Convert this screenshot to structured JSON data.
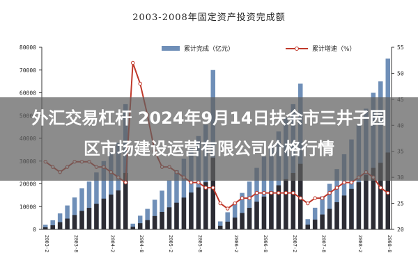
{
  "chart_data": {
    "type": "bar",
    "title": "2003-2008年固定资产投资完成额",
    "legend": {
      "position": "top",
      "entries": [
        "累计完成（亿元）",
        "累计增速（%）"
      ]
    },
    "y_left": {
      "ticks": [
        "80000",
        "70000",
        "60000",
        "50000",
        "40000",
        "30000",
        "20000",
        "10000",
        "0"
      ],
      "ylim": [
        0,
        80000
      ]
    },
    "y_right": {
      "ticks": [
        "55",
        "50",
        "45",
        "40",
        "35",
        "30",
        "25",
        "20"
      ],
      "ylim": [
        20,
        55
      ]
    },
    "x_ticks": [
      "2003-2",
      "2003-8",
      "2004-2",
      "2004-8",
      "2005-2",
      "2005-8",
      "2006-2",
      "2006-8",
      "2007-2",
      "2007-8",
      "2008-2",
      "2008-8"
    ],
    "grid": false,
    "series": [
      {
        "name": "累计完成（亿元）",
        "type": "bar",
        "color": "#6f8fb8",
        "values": [
          2000,
          4000,
          7000,
          10500,
          14000,
          18000,
          21000,
          25000,
          30000,
          34000,
          38000,
          55000,
          2500,
          6000,
          9000,
          13000,
          17000,
          21500,
          26000,
          31000,
          36000,
          41000,
          46000,
          70000,
          3500,
          7500,
          11500,
          16000,
          21000,
          27000,
          32000,
          37000,
          43000,
          49000,
          55000,
          64000,
          4500,
          9500,
          14500,
          20000,
          26500,
          33000,
          39500,
          46000,
          53000,
          60000,
          65000,
          75000
        ]
      },
      {
        "name": "累计增速（%）",
        "type": "line",
        "color": "#c0392b",
        "values": [
          33,
          32,
          31,
          32,
          33,
          33,
          33,
          32,
          32,
          31,
          30,
          29,
          52,
          48,
          42,
          35,
          32,
          32,
          31,
          30,
          29,
          29,
          28,
          28,
          25,
          24,
          25,
          26,
          26,
          27,
          27,
          27,
          27,
          27,
          27,
          26,
          25,
          26,
          26,
          27,
          28,
          29,
          29,
          30,
          31,
          30,
          28,
          27
        ]
      }
    ]
  },
  "overlay": {
    "line1": "外汇交易杠杆 2024年9月14日扶余市三井子园",
    "line2": "区市场建设运营有限公司价格行情"
  }
}
